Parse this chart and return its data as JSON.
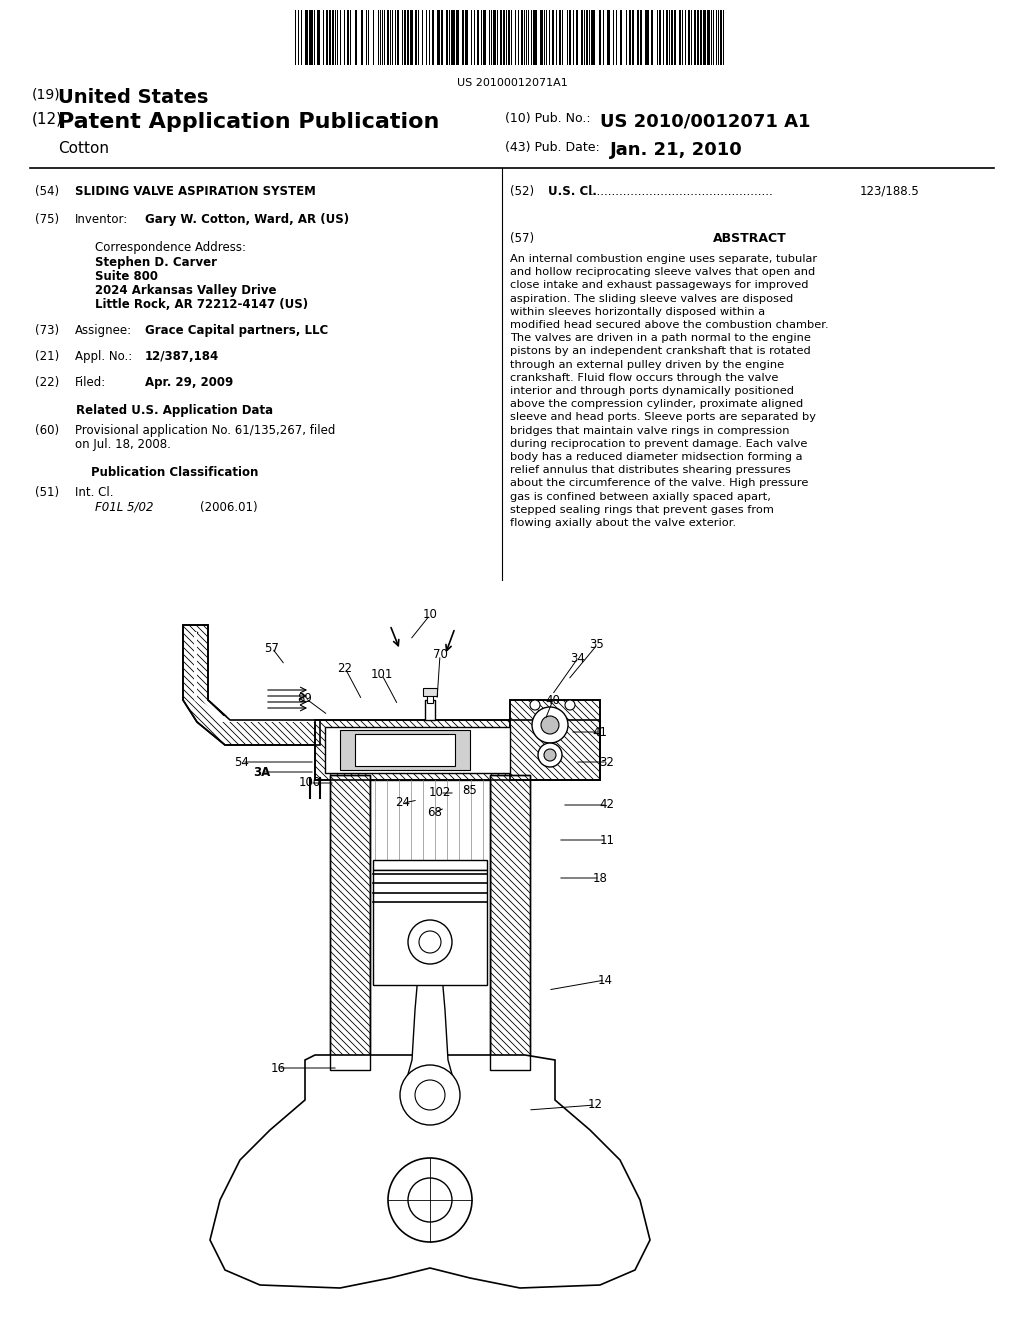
{
  "barcode_text": "US 20100012071A1",
  "pub_number": "US 2010/0012071 A1",
  "pub_date": "Jan. 21, 2010",
  "bg_color": "#ffffff",
  "header": {
    "line1_prefix": "(19)",
    "line1_main": "United States",
    "line2_prefix": "(12)",
    "line2_main": "Patent Application Publication",
    "line3": "Cotton",
    "pub_no_label": "(10) Pub. No.:",
    "pub_no_val": "US 2010/0012071 A1",
    "pub_date_label": "(43) Pub. Date:",
    "pub_date_val": "Jan. 21, 2010"
  },
  "left_col": {
    "f54_num": "(54)",
    "f54_val": "SLIDING VALVE ASPIRATION SYSTEM",
    "f75_num": "(75)",
    "f75_label": "Inventor:",
    "f75_val": "Gary W. Cotton, Ward, AR (US)",
    "corr_label": "Correspondence Address:",
    "corr_name": "Stephen D. Carver",
    "corr_suite": "Suite 800",
    "corr_street": "2024 Arkansas Valley Drive",
    "corr_city": "Little Rock, AR 72212-4147 (US)",
    "f73_num": "(73)",
    "f73_label": "Assignee:",
    "f73_val": "Grace Capital partners, LLC",
    "f21_num": "(21)",
    "f21_label": "Appl. No.:",
    "f21_val": "12/387,184",
    "f22_num": "(22)",
    "f22_label": "Filed:",
    "f22_val": "Apr. 29, 2009",
    "related_title": "Related U.S. Application Data",
    "f60_num": "(60)",
    "f60_val": "Provisional application No. 61/135,267, filed on Jul. 18, 2008.",
    "pubclass_title": "Publication Classification",
    "f51_num": "(51)",
    "f51_label": "Int. Cl.",
    "f51_code": "F01L 5/02",
    "f51_date": "(2006.01)"
  },
  "right_col": {
    "f52_num": "(52)",
    "f52_label": "U.S. Cl.",
    "f52_dots": ".................................................",
    "f52_val": "123/188.5",
    "f57_num": "(57)",
    "f57_title": "ABSTRACT",
    "abstract": "An internal combustion engine uses separate, tubular and hollow reciprocating sleeve valves that open and close intake and exhaust passageways for improved aspiration. The sliding sleeve valves are disposed within sleeves horizontally disposed within a modified head secured above the combustion chamber. The valves are driven in a path normal to the engine pistons by an independent crankshaft that is rotated through an external pulley driven by the engine crankshaft. Fluid flow occurs through the valve interior and through ports dynamically positioned above the compression cylinder, proximate aligned sleeve and head ports. Sleeve ports are separated by bridges that maintain valve rings in compression during reciprocation to prevent damage. Each valve body has a reduced diameter midsection forming a relief annulus that distributes shearing pressures about the circumference of the valve. High pressure gas is confined between axially spaced apart, stepped sealing rings that prevent gases from flowing axially about the valve exterior."
  }
}
